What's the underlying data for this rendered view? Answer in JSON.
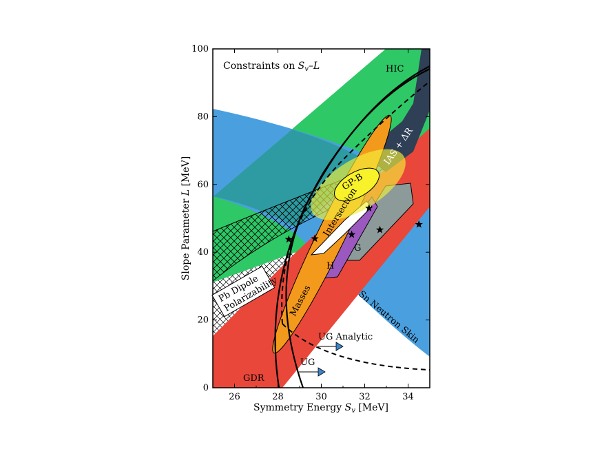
{
  "chart_data": {
    "type": "region",
    "title": "Constraints on S_v–L",
    "title_parts": {
      "prefix": "Constraints on ",
      "s": "S",
      "sub": "v",
      "dash": "–",
      "l": "L"
    },
    "xlabel": "Symmetry Energy S_v [MeV]",
    "xlabel_parts": {
      "prefix": "Symmetry Energy ",
      "s": "S",
      "sub": "v",
      "suffix": " [MeV]"
    },
    "ylabel": "Slope Parameter L [MeV]",
    "ylabel_parts": {
      "prefix": "Slope Parameter ",
      "l": "L",
      "suffix": " [MeV]"
    },
    "xlim": [
      25,
      35
    ],
    "ylim": [
      0,
      100
    ],
    "xticks": [
      26,
      28,
      30,
      32,
      34
    ],
    "yticks": [
      0,
      20,
      40,
      60,
      80,
      100
    ],
    "colors": {
      "hic": "#2ec866",
      "sn_skin": "#4aa0df",
      "gdr": "#e8473a",
      "masses": "#f39a1c",
      "gp_b": "#f4ef3a",
      "gp_b_inner": "#f8f22a",
      "h": "#9b59c0",
      "g": "#8c9a9a",
      "ias": "#2f3f55",
      "intersection": "#ffffff",
      "ug_arrow": "#3a86c8"
    },
    "regions": [
      {
        "label": "HIC",
        "kind": "band"
      },
      {
        "label": "Sn Neutron Skin",
        "kind": "band"
      },
      {
        "label": "GDR",
        "kind": "band"
      },
      {
        "label": "Pb Dipole Polarizability",
        "label_lines": [
          "Pb Dipole",
          "Polarizability"
        ],
        "kind": "hatched-band"
      },
      {
        "label": "Masses",
        "kind": "ellipse"
      },
      {
        "label": "GP-B",
        "kind": "ellipse"
      },
      {
        "label": "IAS + ΔR",
        "kind": "polygon"
      },
      {
        "label": "H",
        "kind": "polygon"
      },
      {
        "label": "G",
        "kind": "polygon"
      },
      {
        "label": "Intersection",
        "kind": "polygon"
      }
    ],
    "curves": [
      {
        "label": "UG",
        "style": "solid"
      },
      {
        "label": "UG Analytic",
        "style": "dashed"
      }
    ],
    "stars": [
      {
        "x": 28.5,
        "y": 43.8
      },
      {
        "x": 29.7,
        "y": 44.0
      },
      {
        "x": 31.4,
        "y": 45.2
      },
      {
        "x": 32.2,
        "y": 53.0
      },
      {
        "x": 32.7,
        "y": 46.6
      },
      {
        "x": 34.5,
        "y": 48.2
      }
    ]
  }
}
